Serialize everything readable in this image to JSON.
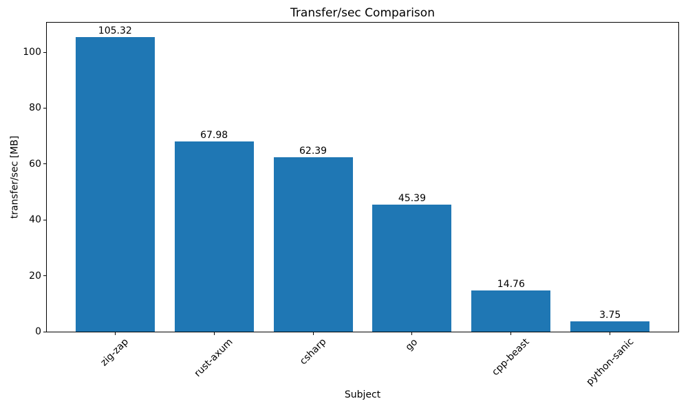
{
  "chart_data": {
    "type": "bar",
    "title": "Transfer/sec Comparison",
    "xlabel": "Subject",
    "ylabel": "transfer/sec [MB]",
    "categories": [
      "zig-zap",
      "rust-axum",
      "csharp",
      "go",
      "cpp-beast",
      "python-sanic"
    ],
    "values": [
      105.32,
      67.98,
      62.39,
      45.39,
      14.76,
      3.75
    ],
    "bar_labels": [
      "105.32",
      "67.98",
      "62.39",
      "45.39",
      "14.76",
      "3.75"
    ],
    "yticks": [
      0,
      20,
      40,
      60,
      80,
      100
    ],
    "ylim": [
      0,
      110.59
    ],
    "xlim_units": [
      -0.69,
      5.69
    ],
    "bar_width_units": 0.8,
    "bar_color": "#1f77b4",
    "xtick_rotation_deg": 45,
    "grid": false,
    "legend": false
  }
}
